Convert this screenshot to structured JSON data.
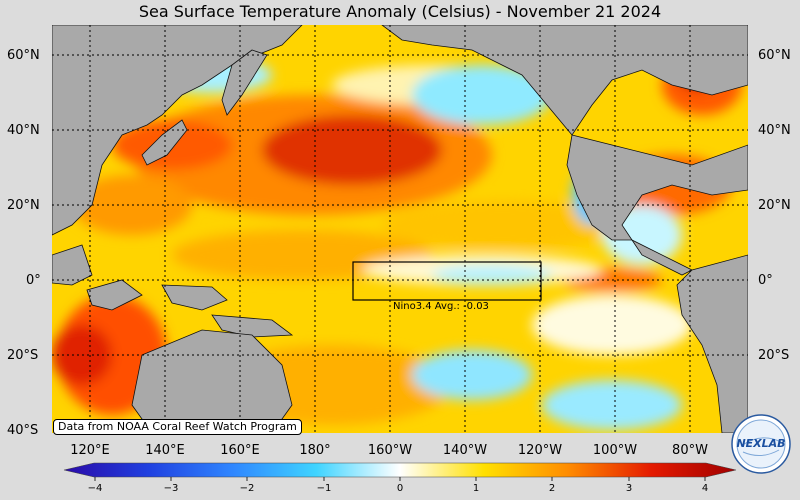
{
  "title": "Sea Surface Temperature Anomaly (Celsius) - November 21 2024",
  "lat_labels": [
    "60°N",
    "40°N",
    "20°N",
    "0°",
    "20°S",
    "40°S"
  ],
  "lon_labels": [
    "120°E",
    "140°E",
    "160°E",
    "180°",
    "160°W",
    "140°W",
    "120°W",
    "100°W",
    "80°W"
  ],
  "nino_box_label": "Nino3.4 Avg.: -0.03",
  "credit": "Data from NOAA Coral Reef Watch Program",
  "colorbar": {
    "ticks": [
      "−4",
      "−3",
      "−2",
      "−1",
      "0",
      "1",
      "2",
      "3",
      "4"
    ],
    "range": [
      -4,
      4
    ],
    "colors": [
      "#2a0aa8",
      "#2040e0",
      "#2f86ff",
      "#3fd4ff",
      "#ffffff",
      "#ffe000",
      "#ff8c00",
      "#e41a00",
      "#a00000"
    ]
  },
  "logo_text": "NEXLAB",
  "colors": {
    "land": "#a9a9a9",
    "warm": "#ff8c00",
    "hot": "#c80000",
    "cool": "#7fe3ff",
    "neutral": "#ffffff"
  }
}
